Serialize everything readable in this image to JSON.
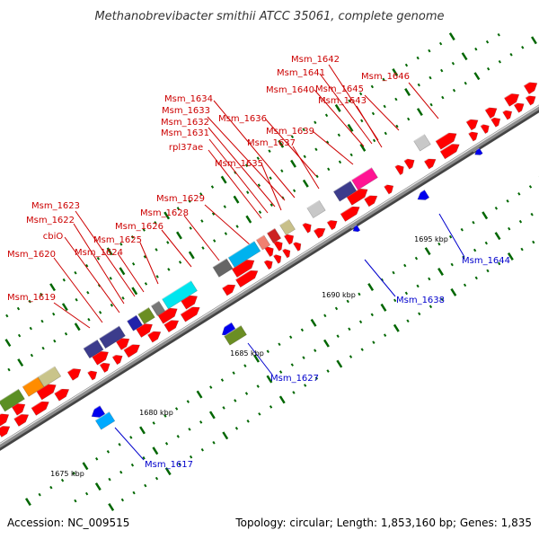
{
  "title": "Methanobrevibacter smithii ATCC 35061, complete genome",
  "footer": {
    "accession": "Accession: NC_009515",
    "topology": "Topology: circular; Length: 1,853,160 bp; Genes: 1,835"
  },
  "colors": {
    "backbone": "#8c8c8c",
    "forward_gene": "#ff0000",
    "reverse_gene": "#0000ff",
    "forward_label": "#cc0000",
    "reverse_label": "#0000cc",
    "tick": "#006600"
  },
  "scale_labels": [
    "1675 kbp",
    "1680 kbp",
    "1685 kbp",
    "1690 kbp",
    "1695 kbp"
  ],
  "labels_top": [
    "Msm_1642",
    "Msm_1641",
    "Msm_1646",
    "Msm_1640",
    "Msm_1645",
    "Msm_1643",
    "Msm_1634",
    "Msm_1633",
    "Msm_1636",
    "Msm_1632",
    "Msm_1639",
    "Msm_1631",
    "Msm_1637",
    "rpl37ae",
    "Msm_1635",
    "Msm_1629",
    "Msm_1623",
    "Msm_1628",
    "Msm_1622",
    "Msm_1626",
    "cbiO",
    "Msm_1625",
    "Msm_1620",
    "Msm_1624",
    "Msm_1619"
  ],
  "labels_bottom": [
    "Msm_1644",
    "Msm_1638",
    "Msm_1627",
    "Msm_1617"
  ]
}
